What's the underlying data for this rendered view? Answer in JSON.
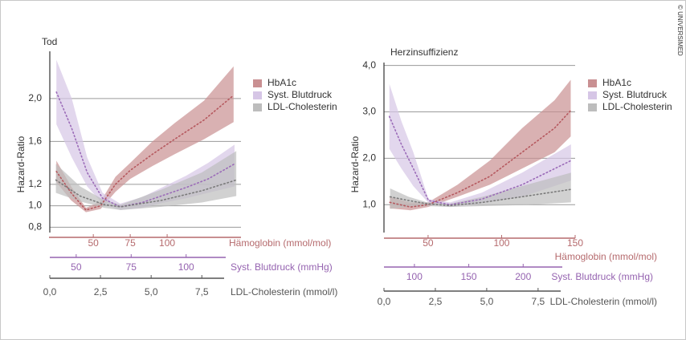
{
  "copyright": "© UNIVERSIMED",
  "chart_data": [
    {
      "type": "line",
      "title": "Tod",
      "y_label": "Hazard-Ratio",
      "ylim": [
        0.75,
        2.5
      ],
      "yticks": [
        {
          "value": 0.8,
          "label": "0,8"
        },
        {
          "value": 1.0,
          "label": "1,0"
        },
        {
          "value": 1.2,
          "label": "1,2"
        },
        {
          "value": 1.6,
          "label": "1,6"
        },
        {
          "value": 2.0,
          "label": "2,0"
        }
      ],
      "grid": true,
      "legend": "upper right",
      "x_axes": [
        {
          "label": "Hämoglobin (mmol/mol)",
          "color": "#b56a6d",
          "xlim": [
            20,
            150
          ],
          "xticks": [
            50,
            75,
            100
          ]
        },
        {
          "label": "Syst. Blutdruck (mmHg)",
          "color": "#9563b0",
          "xlim": [
            38,
            118
          ],
          "xticks": [
            50,
            75,
            100
          ]
        },
        {
          "label": "LDL-Cholesterin (mmol/l)",
          "color": "#555555",
          "xlim": [
            0,
            8.6
          ],
          "xticks": [
            {
              "value": 0,
              "label": "0,0"
            },
            {
              "value": 2.5,
              "label": "2,5"
            },
            {
              "value": 5,
              "label": "5,0"
            },
            {
              "value": 7.5,
              "label": "7,5"
            }
          ]
        }
      ],
      "series": [
        {
          "name": "HbA1c",
          "x_axis": 0,
          "color": "#b5585e",
          "band_color": "#c99092",
          "x": [
            25,
            35,
            45,
            55,
            65,
            75,
            90,
            105,
            125,
            145
          ],
          "values": [
            1.32,
            1.12,
            0.96,
            1.0,
            1.2,
            1.33,
            1.48,
            1.62,
            1.8,
            2.03
          ],
          "upper": [
            1.42,
            1.18,
            0.98,
            1.04,
            1.27,
            1.4,
            1.6,
            1.77,
            1.98,
            2.3
          ],
          "lower": [
            1.22,
            1.05,
            0.94,
            0.97,
            1.13,
            1.25,
            1.37,
            1.48,
            1.62,
            1.78
          ]
        },
        {
          "name": "Syst. Blutdruck",
          "x_axis": 1,
          "color": "#9b6bb8",
          "band_color": "#d6c6e6",
          "x": [
            41,
            48,
            55,
            62,
            70,
            80,
            90,
            100,
            110,
            122
          ],
          "values": [
            2.06,
            1.72,
            1.31,
            1.07,
            0.99,
            1.03,
            1.1,
            1.17,
            1.25,
            1.39
          ],
          "upper": [
            2.36,
            2.0,
            1.45,
            1.12,
            1.02,
            1.08,
            1.18,
            1.28,
            1.4,
            1.57
          ],
          "lower": [
            1.76,
            1.45,
            1.18,
            1.02,
            0.96,
            0.98,
            1.03,
            1.07,
            1.12,
            1.18
          ]
        },
        {
          "name": "LDL-Cholesterin",
          "x_axis": 2,
          "color": "#7a7a7a",
          "band_color": "#bdbdbd",
          "x": [
            0.3,
            1.5,
            2.7,
            3.5,
            5.5,
            7.5,
            9.2
          ],
          "values": [
            1.24,
            1.09,
            1.01,
            0.99,
            1.05,
            1.14,
            1.24
          ],
          "upper": [
            1.39,
            1.18,
            1.05,
            1.01,
            1.15,
            1.31,
            1.51
          ],
          "lower": [
            1.12,
            1.04,
            0.98,
            0.96,
            0.99,
            1.03,
            1.09
          ]
        }
      ]
    },
    {
      "type": "line",
      "title": "Herzinsuffizienz",
      "y_label": "Hazard-Ratio",
      "ylim": [
        0.4,
        4.2
      ],
      "yticks": [
        {
          "value": 1.0,
          "label": "1,0"
        },
        {
          "value": 2.0,
          "label": "2,0"
        },
        {
          "value": 3.0,
          "label": "3,0"
        },
        {
          "value": 4.0,
          "label": "4,0"
        }
      ],
      "grid": true,
      "legend": "upper right",
      "x_axes": [
        {
          "label": "Hämoglobin (mmol/mol)",
          "color": "#b56a6d",
          "xlim": [
            20,
            150
          ],
          "xticks": [
            50,
            100,
            150
          ]
        },
        {
          "label": "Syst. Blutdruck (mmHg)",
          "color": "#9563b0",
          "xlim": [
            72,
            236
          ],
          "xticks": [
            100,
            150,
            200
          ]
        },
        {
          "label": "LDL-Cholesterin (mmol/l)",
          "color": "#555555",
          "xlim": [
            0,
            8.6
          ],
          "xticks": [
            {
              "value": 0,
              "label": "0,0"
            },
            {
              "value": 2.5,
              "label": "2,5"
            },
            {
              "value": 5,
              "label": "5,0"
            },
            {
              "value": 7.5,
              "label": "7,5"
            }
          ]
        }
      ],
      "series": [
        {
          "name": "HbA1c",
          "x_axis": 0,
          "color": "#b5585e",
          "band_color": "#c99092",
          "x": [
            24,
            38,
            50,
            70,
            92,
            114,
            136,
            147
          ],
          "values": [
            1.05,
            0.95,
            1.0,
            1.26,
            1.61,
            2.13,
            2.65,
            3.03
          ],
          "upper": [
            1.17,
            1.05,
            1.05,
            1.43,
            1.95,
            2.65,
            3.25,
            3.69
          ],
          "lower": [
            0.92,
            0.88,
            0.95,
            1.17,
            1.43,
            1.78,
            2.13,
            2.47
          ]
        },
        {
          "name": "Syst. Blutdruck",
          "x_axis": 1,
          "color": "#9b6bb8",
          "band_color": "#d6c6e6",
          "x": [
            77,
            88,
            99,
            113,
            133,
            162,
            199,
            244
          ],
          "values": [
            2.9,
            2.3,
            1.78,
            1.09,
            1.0,
            1.12,
            1.43,
            1.95
          ],
          "upper": [
            3.6,
            2.8,
            2.13,
            1.12,
            1.05,
            1.26,
            1.69,
            2.3
          ],
          "lower": [
            2.2,
            1.78,
            1.4,
            1.04,
            0.95,
            1.03,
            1.17,
            1.52
          ]
        },
        {
          "name": "LDL-Cholesterin",
          "x_axis": 2,
          "color": "#7a7a7a",
          "band_color": "#bdbdbd",
          "x": [
            0.3,
            1.2,
            2.1,
            3.2,
            4.8,
            6.7,
            9.1
          ],
          "values": [
            1.17,
            1.09,
            1.02,
            0.98,
            1.05,
            1.17,
            1.33
          ],
          "upper": [
            1.35,
            1.17,
            1.05,
            1.02,
            1.17,
            1.4,
            1.69
          ],
          "lower": [
            0.91,
            0.95,
            0.97,
            0.95,
            0.97,
            0.99,
            1.05
          ]
        }
      ]
    }
  ]
}
